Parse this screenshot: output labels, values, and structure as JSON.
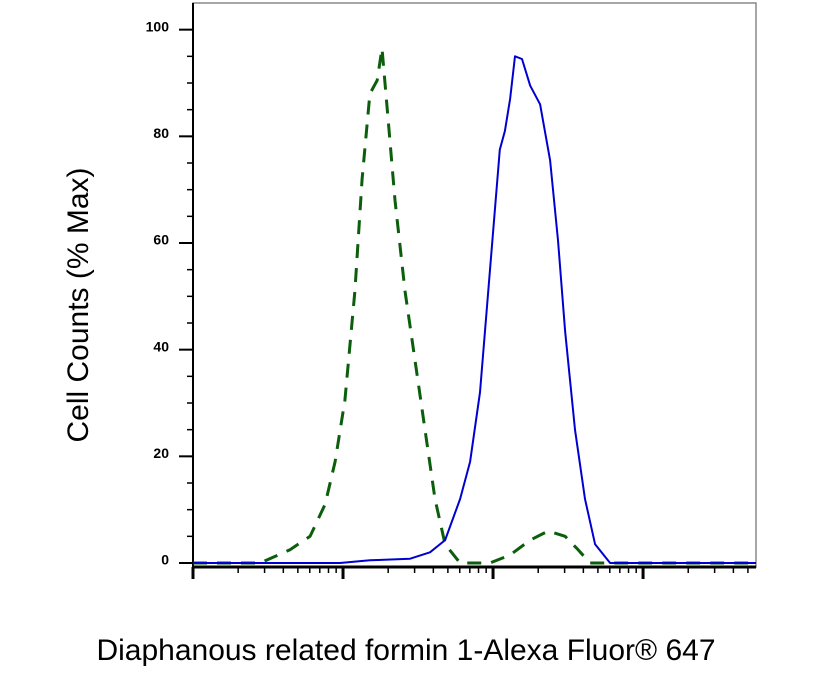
{
  "chart_data": {
    "type": "line",
    "xlabel": "Diaphanous related formin 1-Alexa Fluor® 647",
    "ylabel": "Cell Counts (% Max)",
    "xscale": "log",
    "xlim": [
      1,
      5660
    ],
    "xticks": [
      1,
      10,
      100,
      1000
    ],
    "ylim": [
      -0.75,
      105
    ],
    "yticks": [
      0,
      20,
      40,
      60,
      80,
      100
    ],
    "series": [
      {
        "color": "#0b5e0b",
        "dashed": true,
        "x": [
          1,
          2.8,
          4.43,
          6.03,
          7.59,
          8.85,
          10.3,
          12.0,
          13.4,
          15.1,
          16.9,
          18.2,
          20.0,
          22.2,
          25.9,
          30.2,
          35.2,
          41.0,
          47.9,
          60.3,
          95.5,
          130,
          177,
          233,
          302,
          369,
          443,
          5660
        ],
        "values": [
          0,
          0,
          2.5,
          5,
          11,
          19,
          30.5,
          51,
          72,
          88,
          90.5,
          96.5,
          83,
          68,
          51,
          38,
          25,
          12,
          3.5,
          0,
          0,
          1.5,
          4.3,
          6,
          5,
          2.5,
          0,
          0
        ]
      },
      {
        "color": "#0000d0",
        "dashed": false,
        "x": [
          1,
          9.55,
          15.1,
          28.0,
          38.0,
          47.9,
          60.3,
          70.3,
          81.9,
          95.5,
          111,
          120,
          130,
          140,
          156,
          177,
          206,
          240,
          271,
          302,
          352,
          410,
          479,
          603,
          5660
        ],
        "values": [
          0,
          0,
          0.5,
          0.8,
          2,
          4.3,
          12,
          19,
          32,
          55,
          77.5,
          81,
          87,
          95,
          94.5,
          89.5,
          86,
          75.5,
          60.5,
          43.5,
          25,
          12,
          3.5,
          0,
          0
        ]
      }
    ]
  }
}
